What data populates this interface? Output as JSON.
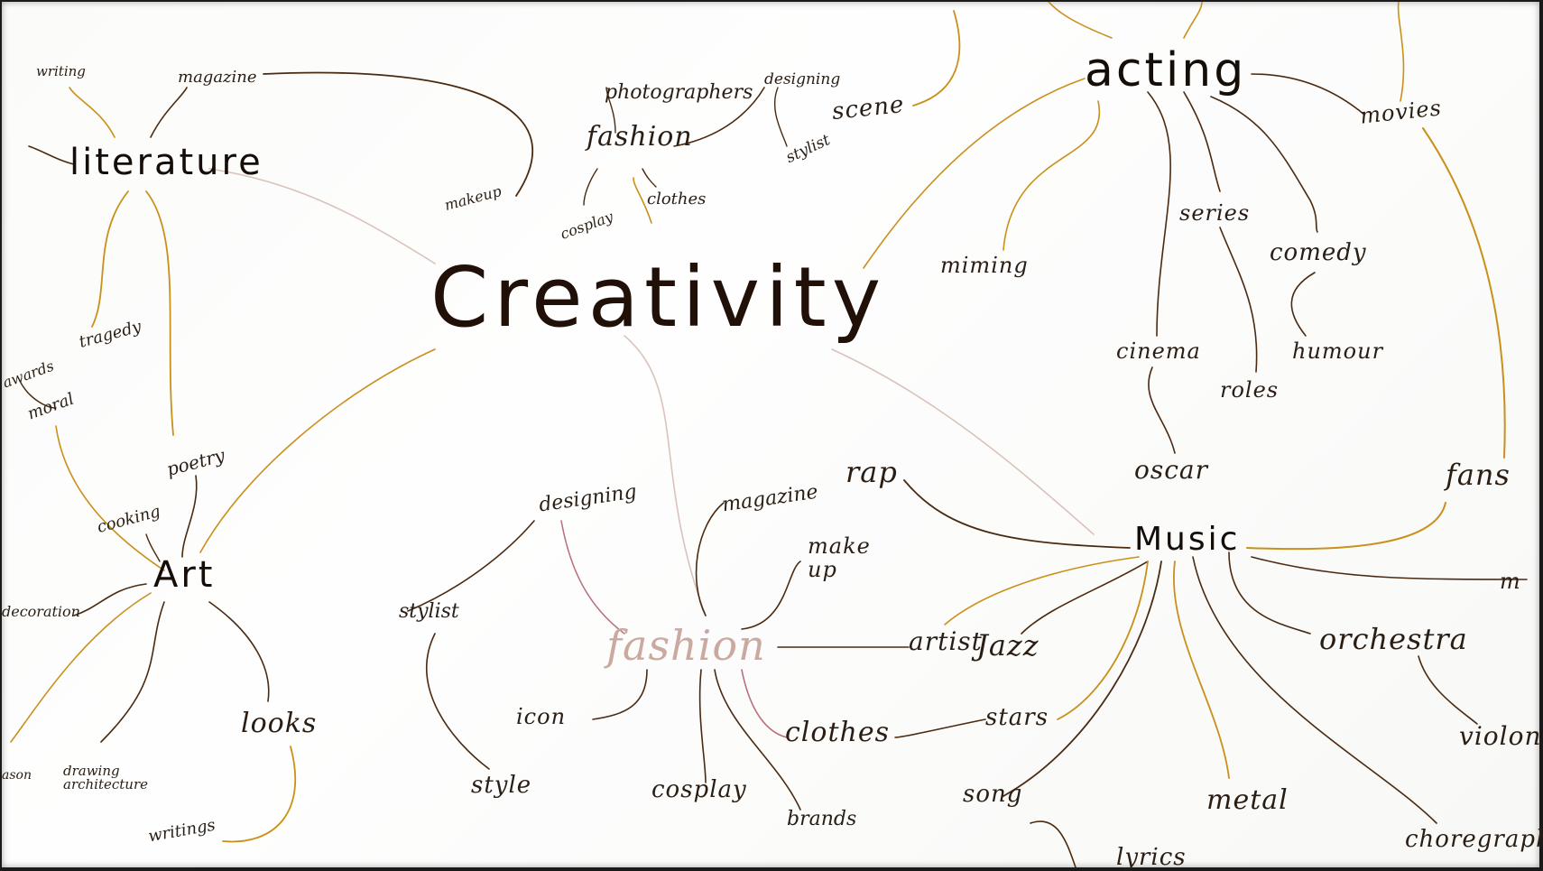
{
  "colors": {
    "link_gold": "#c9901a",
    "link_brown": "#4a2a10",
    "link_pale": "#d9c3bb",
    "link_pink": "#b9707a",
    "ink": "#2a1e14"
  },
  "center": {
    "label": "Creativity"
  },
  "literature": {
    "label": "literature",
    "words": [
      "writing",
      "magazine",
      "tragedy",
      "awards",
      "moral",
      "poetry",
      "cooking"
    ]
  },
  "art": {
    "label": "Art",
    "words": [
      "decoration",
      "drawing architecture",
      "looks",
      "writings",
      "ason"
    ]
  },
  "fashion_top": {
    "label": "fashion",
    "words": [
      "photographers",
      "designing",
      "scene",
      "stylist",
      "makeup",
      "cosplay",
      "clothes"
    ]
  },
  "fashion_bottom": {
    "label": "fashion",
    "words": [
      "designing",
      "magazine",
      "make up",
      "stylist",
      "style",
      "icon",
      "cosplay",
      "brands",
      "clothes"
    ]
  },
  "acting": {
    "label": "acting",
    "words": [
      "miming",
      "series",
      "comedy",
      "humour",
      "cinema",
      "roles",
      "oscar",
      "movies",
      "fans"
    ]
  },
  "music": {
    "label": "Music",
    "words": [
      "rap",
      "artist",
      "Jazz",
      "orchestra",
      "violon",
      "stars",
      "song",
      "metal",
      "choregraphy",
      "lyrics",
      "m"
    ]
  }
}
